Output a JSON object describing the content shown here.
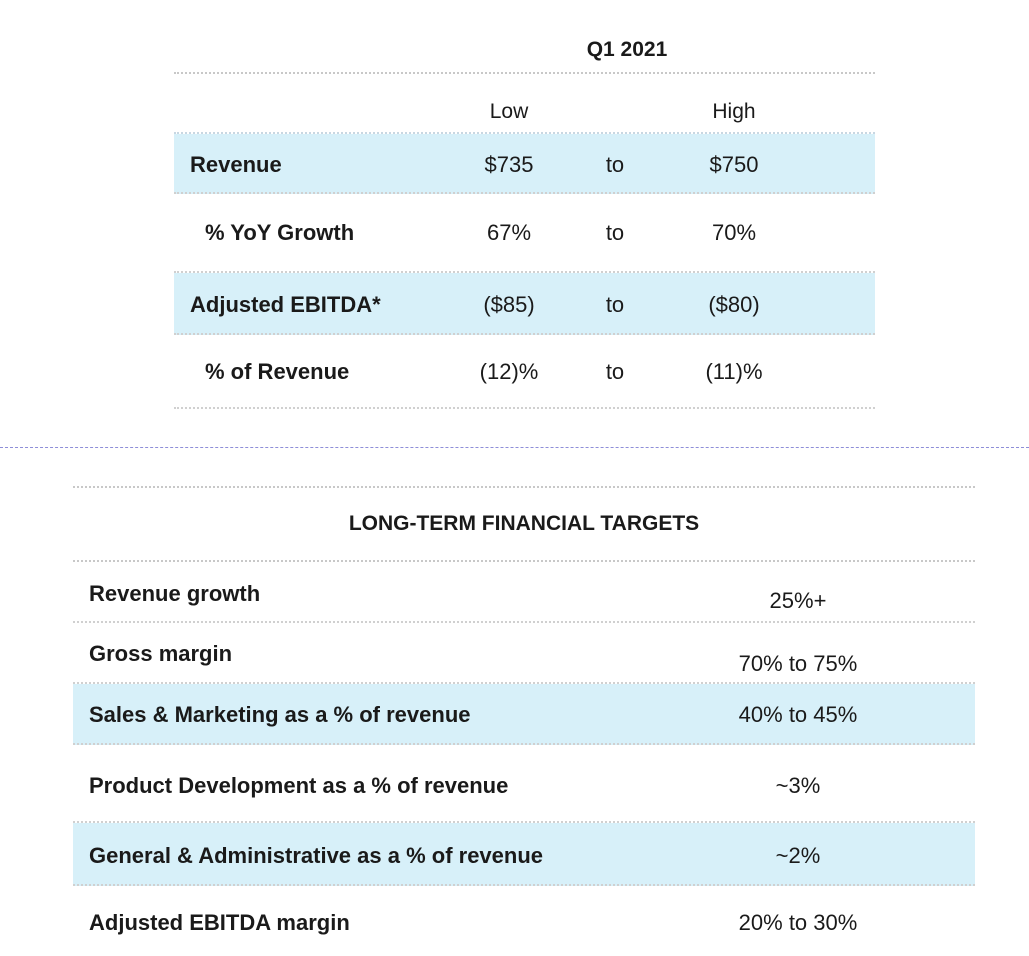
{
  "guidance": {
    "period": "Q1 2021",
    "headers": {
      "low": "Low",
      "high": "High"
    },
    "rows": [
      {
        "label": "Revenue",
        "low": "$735",
        "to": "to",
        "high": "$750"
      },
      {
        "label": "% YoY Growth",
        "low": "67%",
        "to": "to",
        "high": "70%"
      },
      {
        "label": "Adjusted EBITDA*",
        "low": "($85)",
        "to": "to",
        "high": "($80)"
      },
      {
        "label": "% of Revenue",
        "low": "(12)%",
        "to": "to",
        "high": "(11)%"
      }
    ]
  },
  "targets": {
    "title": "LONG-TERM FINANCIAL TARGETS",
    "rows": [
      {
        "label": "Revenue growth",
        "value": "25%+"
      },
      {
        "label": "Gross margin",
        "value": "70% to 75%"
      },
      {
        "label": "Sales & Marketing as a % of revenue",
        "value": "40% to 45%"
      },
      {
        "label": "Product Development as a % of revenue",
        "value": "~3%"
      },
      {
        "label": "General & Administrative as a % of revenue",
        "value": "~2%"
      },
      {
        "label": "Adjusted EBITDA margin",
        "value": "20% to 30%"
      }
    ]
  }
}
